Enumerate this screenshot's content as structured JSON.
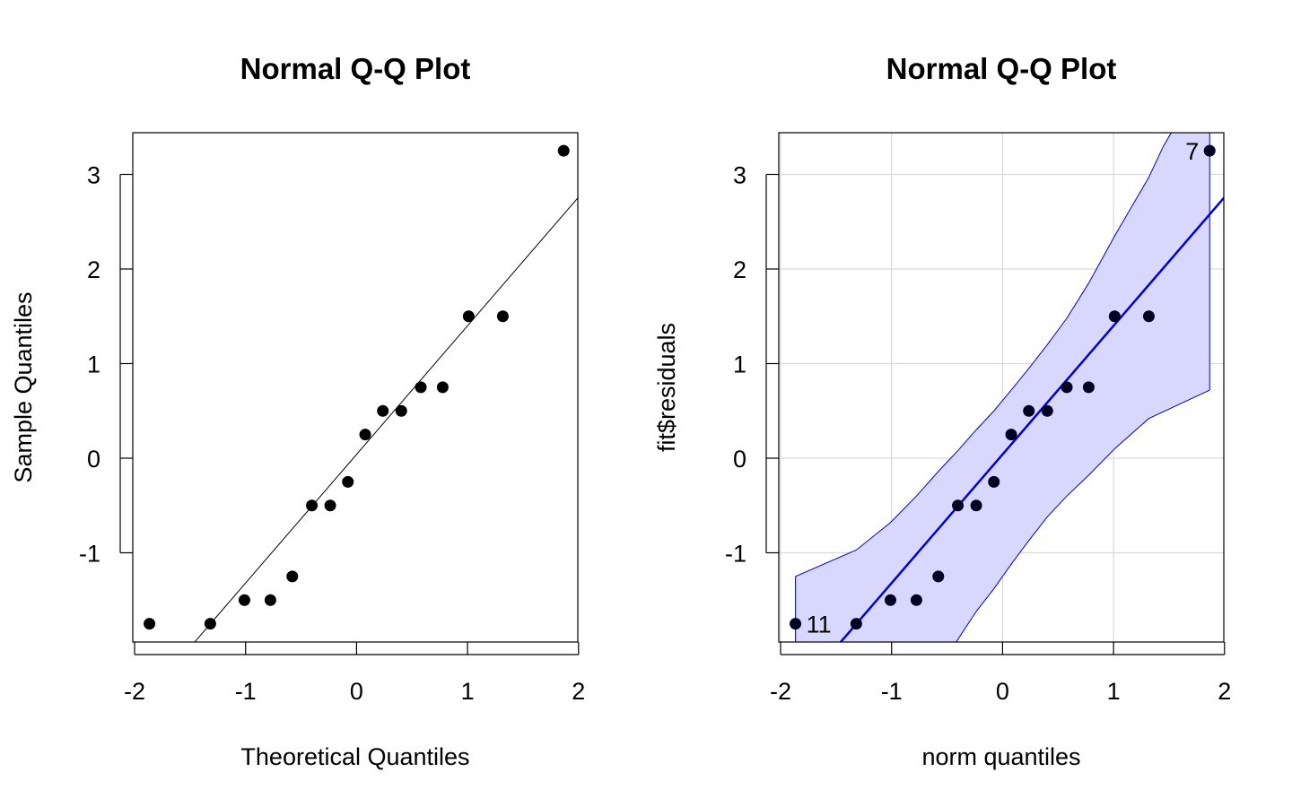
{
  "chart_data": [
    {
      "type": "scatter",
      "title": "Normal Q-Q Plot",
      "xlabel": "Theoretical Quantiles",
      "ylabel": "Sample Quantiles",
      "xlim": [
        -2,
        2
      ],
      "ylim": [
        -2,
        3.5
      ],
      "xticks": [
        "-2",
        "-1",
        "0",
        "1",
        "2"
      ],
      "yticks": [
        "-1",
        "0",
        "1",
        "2",
        "3"
      ],
      "grid": false,
      "colors": {
        "points": "#000000",
        "line": "#000000"
      },
      "points": [
        {
          "x": -1.866,
          "y": -1.75
        },
        {
          "x": -1.318,
          "y": -1.75
        },
        {
          "x": -1.01,
          "y": -1.5
        },
        {
          "x": -0.776,
          "y": -1.5
        },
        {
          "x": -0.579,
          "y": -1.25
        },
        {
          "x": -0.403,
          "y": -0.5
        },
        {
          "x": -0.237,
          "y": -0.5
        },
        {
          "x": -0.078,
          "y": -0.25
        },
        {
          "x": 0.078,
          "y": 0.25
        },
        {
          "x": 0.237,
          "y": 0.5
        },
        {
          "x": 0.403,
          "y": 0.5
        },
        {
          "x": 0.579,
          "y": 0.75
        },
        {
          "x": 0.776,
          "y": 0.75
        },
        {
          "x": 1.01,
          "y": 1.5
        },
        {
          "x": 1.318,
          "y": 1.5
        },
        {
          "x": 1.866,
          "y": 3.25
        }
      ],
      "reference_line": {
        "intercept": 0.04,
        "slope": 1.36
      }
    },
    {
      "type": "scatter",
      "title": "Normal Q-Q Plot",
      "xlabel": "norm quantiles",
      "ylabel": "fit$residuals",
      "xlim": [
        -2,
        2
      ],
      "ylim": [
        -2,
        3.5
      ],
      "xticks": [
        "-2",
        "-1",
        "0",
        "1",
        "2"
      ],
      "yticks": [
        "-1",
        "0",
        "1",
        "2",
        "3"
      ],
      "grid": true,
      "colors": {
        "points": "#000022",
        "line": "#0000dd",
        "band_fill": "#d8d8ff",
        "band_edge": "#0000cc",
        "grid": "#d9d9d9"
      },
      "points": [
        {
          "x": -1.866,
          "y": -1.75
        },
        {
          "x": -1.318,
          "y": -1.75
        },
        {
          "x": -1.01,
          "y": -1.5
        },
        {
          "x": -0.776,
          "y": -1.5
        },
        {
          "x": -0.579,
          "y": -1.25
        },
        {
          "x": -0.403,
          "y": -0.5
        },
        {
          "x": -0.237,
          "y": -0.5
        },
        {
          "x": -0.078,
          "y": -0.25
        },
        {
          "x": 0.078,
          "y": 0.25
        },
        {
          "x": 0.237,
          "y": 0.5
        },
        {
          "x": 0.403,
          "y": 0.5
        },
        {
          "x": 0.579,
          "y": 0.75
        },
        {
          "x": 0.776,
          "y": 0.75
        },
        {
          "x": 1.01,
          "y": 1.5
        },
        {
          "x": 1.318,
          "y": 1.5
        },
        {
          "x": 1.866,
          "y": 3.25
        }
      ],
      "reference_line": {
        "intercept": 0.04,
        "slope": 1.36
      },
      "confidence_band": {
        "upper": [
          [
            -1.866,
            -1.25
          ],
          [
            -1.318,
            -0.97
          ],
          [
            -1.01,
            -0.68
          ],
          [
            -0.776,
            -0.4
          ],
          [
            -0.579,
            -0.14
          ],
          [
            -0.403,
            0.08
          ],
          [
            -0.237,
            0.3
          ],
          [
            -0.078,
            0.5
          ],
          [
            0.078,
            0.72
          ],
          [
            0.237,
            0.95
          ],
          [
            0.403,
            1.2
          ],
          [
            0.579,
            1.48
          ],
          [
            0.776,
            1.85
          ],
          [
            1.01,
            2.35
          ],
          [
            1.318,
            2.97
          ],
          [
            1.45,
            3.3
          ],
          [
            1.55,
            3.5
          ]
        ],
        "lower": [
          [
            -1.866,
            -2.0
          ],
          [
            -1.06,
            -2.0
          ],
          [
            -0.45,
            -2.0
          ],
          [
            -0.237,
            -1.62
          ],
          [
            -0.078,
            -1.38
          ],
          [
            0.078,
            -1.12
          ],
          [
            0.237,
            -0.87
          ],
          [
            0.403,
            -0.62
          ],
          [
            0.579,
            -0.4
          ],
          [
            0.776,
            -0.18
          ],
          [
            1.01,
            0.1
          ],
          [
            1.318,
            0.42
          ],
          [
            1.866,
            0.72
          ]
        ],
        "right_edge_x": 1.866
      },
      "point_labels": [
        {
          "text": "7",
          "x": 1.866,
          "y": 3.25,
          "side": "left"
        },
        {
          "text": "11",
          "x": -1.866,
          "y": -1.75,
          "side": "right"
        }
      ]
    }
  ]
}
